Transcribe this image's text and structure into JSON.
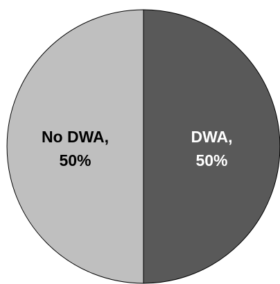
{
  "chart_data": {
    "type": "pie",
    "title": "",
    "slices": [
      {
        "label": "DWA",
        "value": 50,
        "display": "DWA,",
        "percent_label": "50%",
        "color": "#595959",
        "text_color": "#ffffff"
      },
      {
        "label": "No DWA",
        "value": 50,
        "display": "No DWA,",
        "percent_label": "50%",
        "color": "#bfbfbf",
        "text_color": "#000000"
      }
    ],
    "start_angle_deg": 0,
    "direction": "clockwise",
    "legend": "none",
    "data_labels": "inside"
  }
}
